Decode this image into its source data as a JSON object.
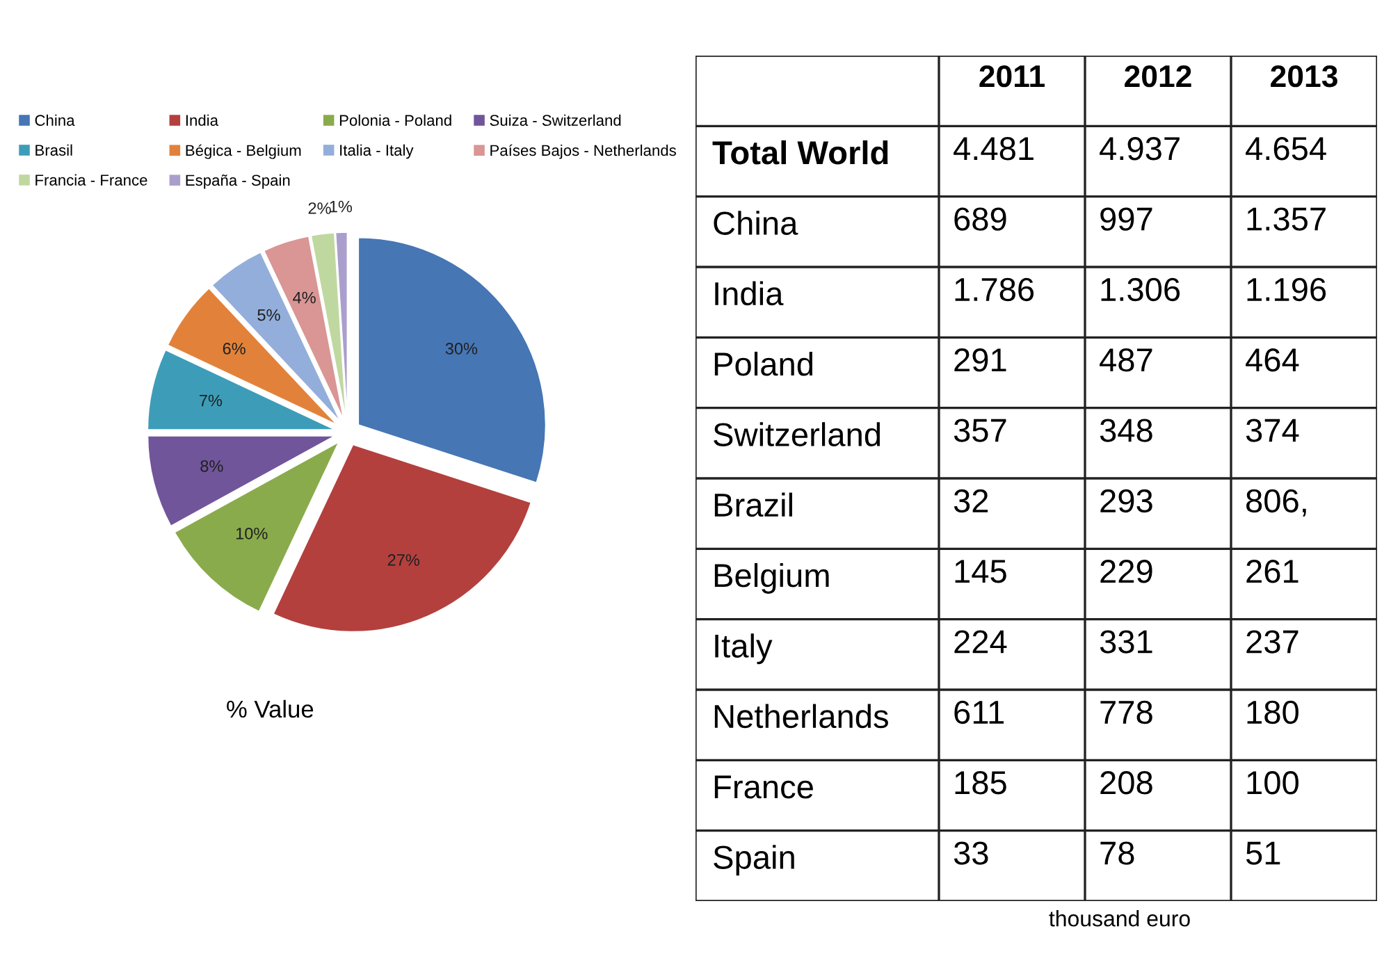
{
  "chart_data": [
    {
      "type": "pie",
      "categories": [
        "China",
        "India",
        "Polonia - Poland",
        "Suiza - Switzerland",
        "Brasil",
        "Bégica - Belgium",
        "Italia - Italy",
        "Países Bajos - Netherlands",
        "Francia - France",
        "España - Spain"
      ],
      "values": [
        30,
        27,
        10,
        8,
        7,
        6,
        5,
        4,
        2,
        1
      ],
      "colors": [
        "#4676b4",
        "#b3403d",
        "#8aab4c",
        "#71559a",
        "#3d9db8",
        "#e2823a",
        "#93aedb",
        "#d99694",
        "#bfd8a0",
        "#aa9fcc"
      ],
      "value_labels": [
        "30%",
        "27%",
        "10%",
        "8%",
        "7%",
        "6%",
        "5%",
        "4%",
        "2%",
        "1%"
      ],
      "legend": "top",
      "annotations": [
        "% Value"
      ]
    },
    {
      "type": "other",
      "categories": [
        "2011",
        "2012",
        "2013"
      ],
      "y_categories": [
        "Total World",
        "China",
        "India",
        "Poland",
        "Switzerland",
        "Brazil",
        "Belgium",
        "Italy",
        "Netherlands",
        "France",
        "Spain"
      ],
      "cell_labels": [
        [
          "4.481",
          "4.937",
          "4.654"
        ],
        [
          "689",
          "997",
          "1.357"
        ],
        [
          "1.786",
          "1.306",
          "1.196"
        ],
        [
          "291",
          "487",
          "464"
        ],
        [
          "357",
          "348",
          "374"
        ],
        [
          "32",
          "293",
          "806,"
        ],
        [
          "145",
          "229",
          "261"
        ],
        [
          "224",
          "331",
          "237"
        ],
        [
          "611",
          "778",
          "180"
        ],
        [
          "185",
          "208",
          "100"
        ],
        [
          "33",
          "78",
          "51"
        ]
      ],
      "annotations": [
        "thousand euro"
      ]
    }
  ]
}
